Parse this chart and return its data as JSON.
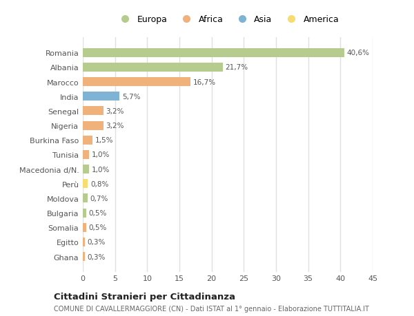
{
  "countries": [
    "Romania",
    "Albania",
    "Marocco",
    "India",
    "Senegal",
    "Nigeria",
    "Burkina Faso",
    "Tunisia",
    "Macedonia d/N.",
    "Perù",
    "Moldova",
    "Bulgaria",
    "Somalia",
    "Egitto",
    "Ghana"
  ],
  "values": [
    40.6,
    21.7,
    16.7,
    5.7,
    3.2,
    3.2,
    1.5,
    1.0,
    1.0,
    0.8,
    0.7,
    0.5,
    0.5,
    0.3,
    0.3
  ],
  "labels": [
    "40,6%",
    "21,7%",
    "16,7%",
    "5,7%",
    "3,2%",
    "3,2%",
    "1,5%",
    "1,0%",
    "1,0%",
    "0,8%",
    "0,7%",
    "0,5%",
    "0,5%",
    "0,3%",
    "0,3%"
  ],
  "continents": [
    "Europa",
    "Europa",
    "Africa",
    "Asia",
    "Africa",
    "Africa",
    "Africa",
    "Africa",
    "Europa",
    "America",
    "Europa",
    "Europa",
    "Africa",
    "Africa",
    "Africa"
  ],
  "continent_colors": {
    "Europa": "#b5cc8e",
    "Africa": "#f0b27a",
    "Asia": "#7fb3d3",
    "America": "#f7dc6f"
  },
  "legend_order": [
    "Europa",
    "Africa",
    "Asia",
    "America"
  ],
  "bg_color": "#ffffff",
  "plot_bg_color": "#ffffff",
  "grid_color": "#e0e0e0",
  "title": "Cittadini Stranieri per Cittadinanza",
  "subtitle": "COMUNE DI CAVALLERMAGGIORE (CN) - Dati ISTAT al 1° gennaio - Elaborazione TUTTITALIA.IT",
  "xlim": [
    0,
    45
  ],
  "xticks": [
    0,
    5,
    10,
    15,
    20,
    25,
    30,
    35,
    40,
    45
  ]
}
